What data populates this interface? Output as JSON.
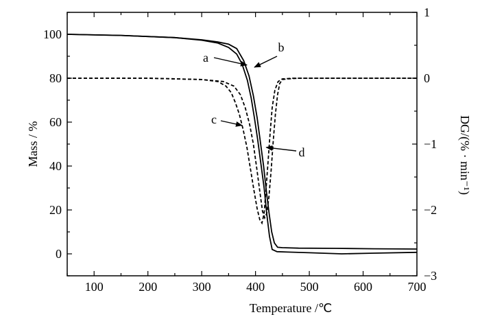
{
  "chart_data": {
    "type": "line",
    "title": "",
    "xlabel": "Temperature /℃",
    "ylabel_left": "Mass / %",
    "ylabel_right": "DG/(% · min⁻¹)",
    "xlim": [
      50,
      700
    ],
    "ylim_left": [
      -10,
      110
    ],
    "ylim_right": [
      -3,
      1
    ],
    "x_ticks": [
      100,
      200,
      300,
      400,
      500,
      600,
      700
    ],
    "y_left_ticks": [
      0,
      20,
      40,
      60,
      80,
      100
    ],
    "y_right_ticks": [
      1,
      0,
      -1,
      -2,
      -3
    ],
    "grid": false,
    "series": [
      {
        "name": "a",
        "axis": "left",
        "style": "solid",
        "x": [
          50,
          150,
          250,
          300,
          330,
          350,
          365,
          375,
          385,
          392,
          398,
          404,
          410,
          416,
          421,
          426,
          431,
          440,
          460,
          500,
          560,
          620,
          700
        ],
        "y": [
          100,
          99.5,
          98.5,
          97.3,
          96,
          94,
          91,
          86.5,
          79,
          71,
          62,
          52,
          41,
          30,
          18,
          8,
          2,
          1,
          0.8,
          0.5,
          0,
          0.3,
          0.7
        ]
      },
      {
        "name": "b",
        "axis": "left",
        "style": "solid",
        "x": [
          50,
          150,
          250,
          300,
          330,
          350,
          365,
          378,
          388,
          396,
          403,
          409,
          415,
          420,
          425,
          430,
          435,
          441,
          450,
          480,
          550,
          620,
          700
        ],
        "y": [
          100,
          99.5,
          98.5,
          97.5,
          96.5,
          95.5,
          93.5,
          88,
          81,
          72,
          62,
          51,
          40,
          29,
          19,
          10,
          5,
          3,
          2.8,
          2.6,
          2.5,
          2.3,
          2.2
        ]
      },
      {
        "name": "c",
        "axis": "right",
        "style": "dashed",
        "x": [
          50,
          200,
          300,
          330,
          345,
          355,
          363,
          370,
          377,
          384,
          391,
          397,
          403,
          408,
          412,
          416,
          419,
          423,
          427,
          431,
          436,
          442,
          450,
          470,
          550,
          700
        ],
        "y": [
          0,
          0,
          -0.02,
          -0.05,
          -0.12,
          -0.22,
          -0.38,
          -0.55,
          -0.78,
          -1.05,
          -1.4,
          -1.7,
          -1.98,
          -2.15,
          -2.2,
          -2.05,
          -1.75,
          -1.3,
          -0.85,
          -0.45,
          -0.18,
          -0.05,
          -0.01,
          0,
          0,
          0
        ]
      },
      {
        "name": "d",
        "axis": "right",
        "style": "dashed",
        "x": [
          50,
          200,
          300,
          340,
          360,
          372,
          381,
          389,
          396,
          402,
          408,
          413,
          417,
          421,
          425,
          429,
          433,
          437,
          441,
          445,
          450,
          460,
          480,
          550,
          700
        ],
        "y": [
          0,
          0,
          -0.02,
          -0.05,
          -0.12,
          -0.25,
          -0.45,
          -0.7,
          -1.0,
          -1.35,
          -1.72,
          -2.02,
          -2.12,
          -2.05,
          -1.8,
          -1.4,
          -0.95,
          -0.55,
          -0.25,
          -0.08,
          -0.02,
          -0.01,
          0,
          0,
          0
        ]
      }
    ],
    "annotations": [
      {
        "label": "a",
        "target_series": "a",
        "target_x": 384,
        "target_y_left": 86
      },
      {
        "label": "b",
        "target_series": "b",
        "target_x": 398,
        "target_y_left": 85
      },
      {
        "label": "c",
        "target_series": "c",
        "target_x": 375,
        "target_y_left": 58.5
      },
      {
        "label": "d",
        "target_series": "d",
        "target_x": 420,
        "target_y_left": 48.5
      }
    ]
  }
}
